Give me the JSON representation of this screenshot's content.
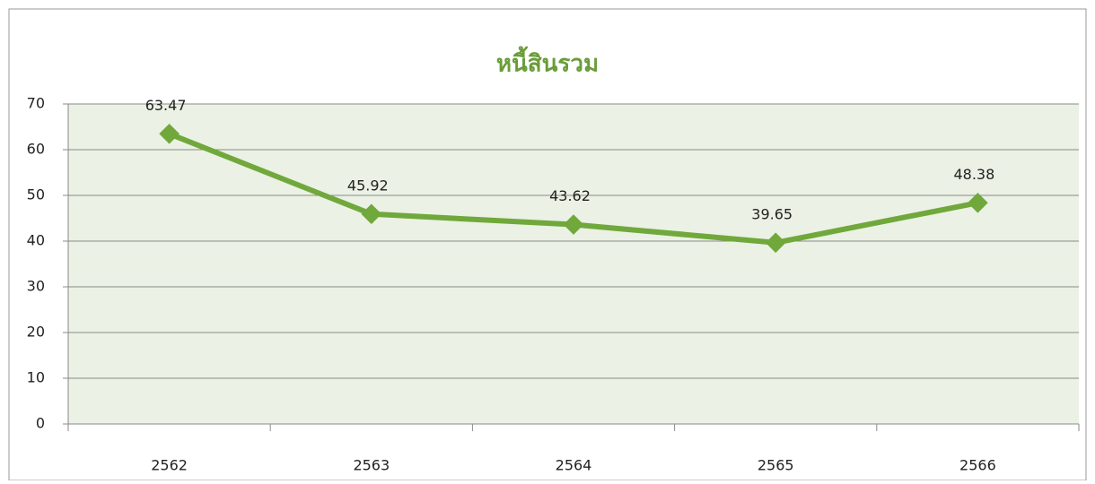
{
  "chart_data": {
    "type": "line",
    "title": "หนี้สินรวม",
    "categories": [
      "2562",
      "2563",
      "2564",
      "2565",
      "2566"
    ],
    "series": [
      {
        "name": "หนี้สินรวม",
        "color": "#70a83c",
        "values": [
          63.47,
          45.92,
          43.62,
          39.65,
          48.38
        ]
      }
    ],
    "ylim": [
      0,
      70
    ],
    "yticks": [
      0,
      10,
      20,
      30,
      40,
      50,
      60,
      70
    ],
    "grid": true
  }
}
